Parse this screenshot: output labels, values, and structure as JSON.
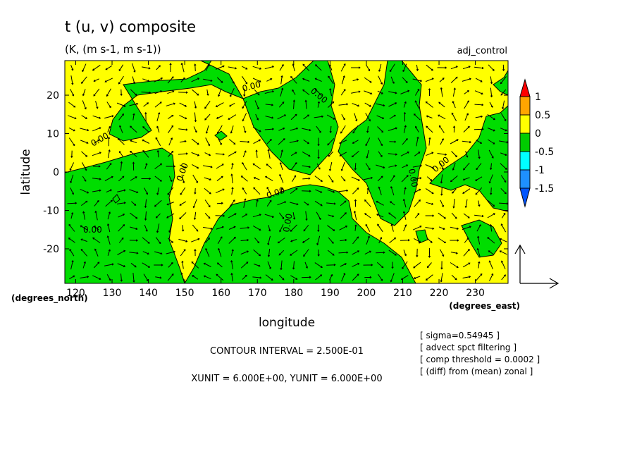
{
  "chart_data": {
    "type": "heatmap",
    "title": "t (u, v) composite",
    "subtitle": "(K, (m s-1, m s-1))",
    "run_label": "adj_control",
    "xlabel": "longitude",
    "ylabel": "latitude",
    "x_units": "(degrees_east)",
    "y_units": "(degrees_north)",
    "xlim": [
      117,
      239
    ],
    "ylim": [
      -29,
      29
    ],
    "x_ticks": [
      "120",
      "130",
      "140",
      "150",
      "160",
      "170",
      "180",
      "190",
      "200",
      "210",
      "220",
      "230"
    ],
    "y_ticks": [
      "20",
      "10",
      "0",
      "-10",
      "-20"
    ],
    "colorbar": {
      "labels": [
        "1",
        "0.5",
        "0",
        "-0.5",
        "-1",
        "-1.5"
      ],
      "colors": [
        "#ff0000",
        "#ffa500",
        "#ffff00",
        "#00cc00",
        "#00ffff",
        "#1e90ff",
        "#0055ff"
      ]
    },
    "contour_label": "0.00",
    "contour_interval": "CONTOUR INTERVAL = 2.500E-01",
    "vector_units": "XUNIT = 6.000E+00, YUNIT = 6.000E+00",
    "notes": [
      "[ sigma=0.54945 ]",
      "[ advect spct filtering ]",
      "[ comp threshold = 0.0002 ]",
      "[ (diff) from (mean) zonal ]"
    ],
    "fill_colors": {
      "positive": "#ffff00",
      "negative": "#00dd00"
    }
  }
}
